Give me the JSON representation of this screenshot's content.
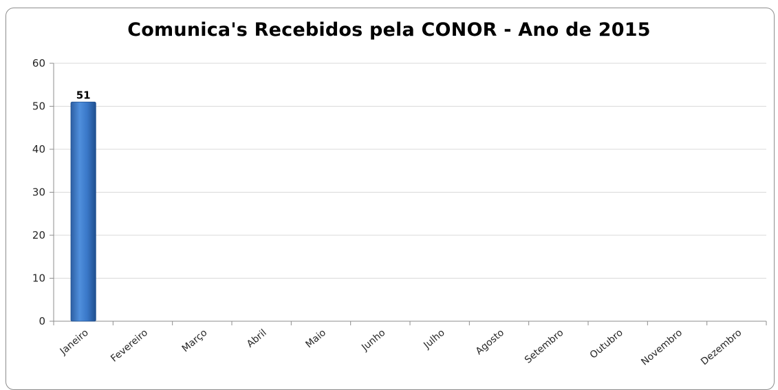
{
  "chart_data": {
    "type": "bar",
    "title": "Comunica's Recebidos pela CONOR - Ano de 2015",
    "xlabel": "",
    "ylabel": "",
    "categories": [
      "Janeiro",
      "Fevereiro",
      "Março",
      "Abril",
      "Maio",
      "Junho",
      "Julho",
      "Agosto",
      "Setembro",
      "Outubro",
      "Novembro",
      "Dezembro"
    ],
    "values": [
      51,
      0,
      0,
      0,
      0,
      0,
      0,
      0,
      0,
      0,
      0,
      0
    ],
    "data_labels": [
      "51",
      "",
      "",
      "",
      "",
      "",
      "",
      "",
      "",
      "",
      "",
      ""
    ],
    "ylim": [
      0,
      60
    ],
    "yticks": [
      0,
      10,
      20,
      30,
      40,
      50,
      60
    ],
    "grid": true,
    "legend": "none",
    "colors": {
      "bar": "#3a78c8",
      "bar_dark": "#1f4f8f",
      "grid": "#d9d9d9",
      "axis": "#8c8c8c"
    }
  }
}
